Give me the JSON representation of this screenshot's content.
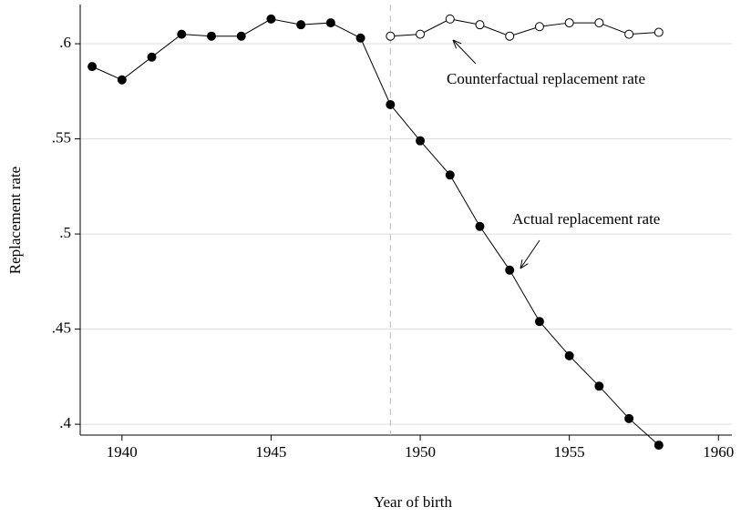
{
  "chart_data": {
    "type": "line",
    "xlabel": "Year of birth",
    "ylabel": "Replacement rate",
    "xlim": [
      1938.6,
      1960.45
    ],
    "xticks": [
      1940,
      1945,
      1950,
      1955,
      1960
    ],
    "ylim": [
      0.3943,
      0.6206
    ],
    "yticks": [
      {
        "value": 0.4,
        "label": ".4"
      },
      {
        "value": 0.45,
        "label": ".45"
      },
      {
        "value": 0.5,
        "label": ".5"
      },
      {
        "value": 0.55,
        "label": ".55"
      },
      {
        "value": 0.6,
        "label": ".6"
      }
    ],
    "grid": true,
    "reference_x": 1949,
    "series": [
      {
        "color": "#000000",
        "marker": "filled",
        "x": [
          1939,
          1940,
          1941,
          1942,
          1943,
          1944,
          1945,
          1946,
          1947,
          1948,
          1949,
          1950,
          1951,
          1952,
          1953,
          1954,
          1955,
          1956,
          1957,
          1958
        ],
        "values": [
          0.588,
          0.581,
          0.593,
          0.605,
          0.604,
          0.604,
          0.613,
          0.61,
          0.611,
          0.603,
          0.568,
          0.549,
          0.531,
          0.504,
          0.481,
          0.454,
          0.436,
          0.42,
          0.403,
          0.389
        ]
      },
      {
        "color": "#000000",
        "marker": "hollow",
        "x": [
          1949,
          1950,
          1951,
          1952,
          1953,
          1954,
          1955,
          1956,
          1957,
          1958
        ],
        "values": [
          0.604,
          0.605,
          0.613,
          0.61,
          0.604,
          0.609,
          0.611,
          0.611,
          0.605,
          0.606
        ]
      }
    ],
    "annotations": [
      "Counterfactual replacement rate",
      "Actual replacement rate"
    ]
  }
}
